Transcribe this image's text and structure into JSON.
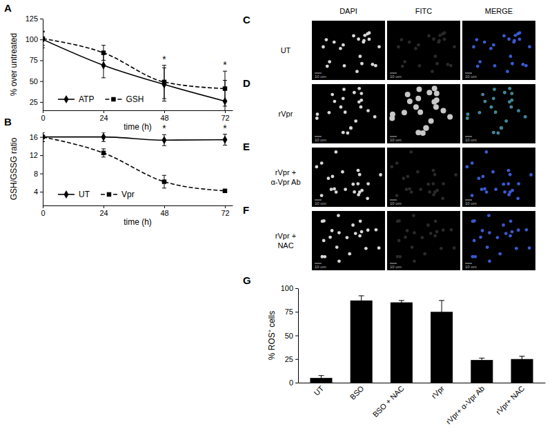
{
  "chart_data": [
    {
      "panel": "A",
      "type": "line",
      "x": [
        0,
        24,
        48,
        72
      ],
      "xlim": [
        0,
        75
      ],
      "xticks": [
        0,
        24,
        48,
        72
      ],
      "ylim": [
        15,
        125
      ],
      "yticks": [
        25,
        50,
        75,
        100,
        125
      ],
      "x_label": "time (h)",
      "y_label": "% over untreated",
      "legend": "lower-left",
      "series": [
        {
          "name": "ATP",
          "color": "#000000",
          "marker": "diamond",
          "line_style": "solid",
          "values": [
            100,
            69,
            46,
            26
          ],
          "errors": [
            10,
            15,
            20,
            25
          ]
        },
        {
          "name": "GSH",
          "color": "#000000",
          "marker": "square",
          "line_style": "dashed",
          "values": [
            101,
            84,
            49,
            41
          ],
          "errors": [
            8,
            9,
            20,
            21
          ]
        }
      ],
      "annotations": [
        {
          "text": "*",
          "x": 48
        },
        {
          "text": "*",
          "x": 72
        }
      ]
    },
    {
      "panel": "B",
      "type": "line",
      "x": [
        0,
        24,
        48,
        72
      ],
      "xlim": [
        0,
        75
      ],
      "xticks": [
        0,
        24,
        48,
        72
      ],
      "ylim": [
        1,
        17
      ],
      "yticks": [
        4,
        8,
        12,
        16
      ],
      "x_label": "time (h)",
      "y_label": "GSH/GSSG ratio",
      "legend": "lower-left",
      "series": [
        {
          "name": "UT",
          "color": "#000000",
          "marker": "diamond",
          "line_style": "solid",
          "values": [
            16,
            16,
            15.3,
            15.4
          ],
          "errors": [
            1,
            1,
            1.2,
            1.2
          ]
        },
        {
          "name": "Vpr",
          "color": "#000000",
          "marker": "square",
          "line_style": "dashed",
          "values": [
            16,
            12.5,
            6.2,
            4.2
          ],
          "errors": [
            1,
            0.9,
            1.4,
            0.3
          ]
        }
      ],
      "annotations": [
        {
          "text": "*",
          "x": 48
        },
        {
          "text": "*",
          "x": 72
        }
      ]
    },
    {
      "panel": "G",
      "type": "bar",
      "categories": [
        "UT",
        "BSO",
        "BSO + NAC",
        "rVpr",
        "rVpr+ α-Vpr Ab",
        "rVpr+ NAC"
      ],
      "values": [
        5,
        87,
        85,
        75,
        24,
        25
      ],
      "errors": [
        2.5,
        5,
        2,
        12,
        2,
        3
      ],
      "color": "#000000",
      "ylim": [
        0,
        100
      ],
      "yticks": [
        0,
        25,
        50,
        75,
        100
      ],
      "y_label": "% ROS⁺ cells"
    }
  ],
  "micrographs": {
    "columns": [
      "DAPI",
      "FITC",
      "MERGE"
    ],
    "scale_bar": "10 um",
    "rows": [
      {
        "panel": "C",
        "label": "UT"
      },
      {
        "panel": "D",
        "label": "rVpr"
      },
      {
        "panel": "E",
        "label": "rVpr +\nα-Vpr Ab"
      },
      {
        "panel": "F",
        "label": "rVpr +\nNAC"
      }
    ]
  }
}
